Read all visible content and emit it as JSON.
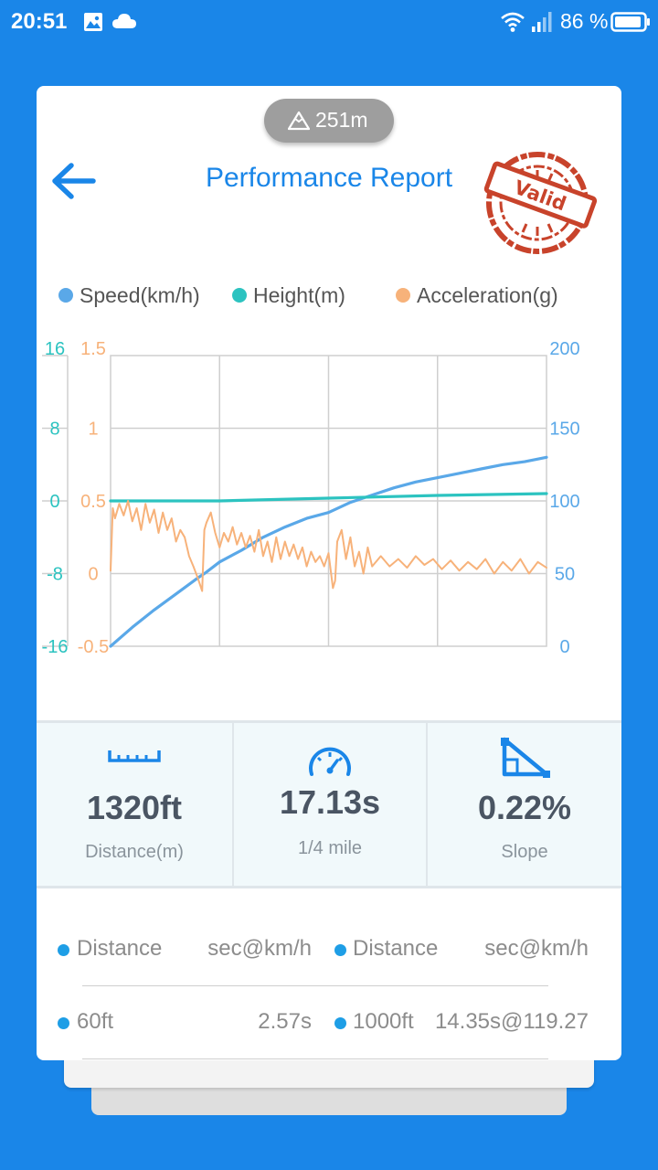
{
  "status_bar": {
    "time": "20:51",
    "battery": "86 %",
    "icons": [
      "gallery-icon",
      "cloud-icon",
      "wifi-icon",
      "signal-icon",
      "battery-icon"
    ]
  },
  "header": {
    "altitude_badge": "251m",
    "title": "Performance Report",
    "stamp_text": "Valid"
  },
  "legend": {
    "speed": "Speed(km/h)",
    "height": "Height(m)",
    "acceleration": "Acceleration(g)"
  },
  "colors": {
    "speed": "#5aa8e8",
    "height": "#2cc3c0",
    "acceleration": "#f7b27a",
    "accent": "#1a86e8",
    "stamp": "#c8432b"
  },
  "chart_data": {
    "type": "line",
    "axes": {
      "height": {
        "ticks": [
          "16",
          "8",
          "0",
          "-8",
          "-16"
        ],
        "ylim": [
          -16,
          16
        ]
      },
      "acceleration": {
        "ticks": [
          "1.5",
          "1",
          "0.5",
          "0",
          "-0.5"
        ],
        "ylim": [
          -0.5,
          1.5
        ]
      },
      "speed": {
        "ticks": [
          "200",
          "150",
          "100",
          "50",
          "0"
        ],
        "ylim": [
          0,
          200
        ]
      }
    },
    "x": [
      0,
      0.25,
      0.5,
      0.75,
      1.0
    ],
    "grid": true,
    "legend_position": "top",
    "series": [
      {
        "name": "Speed(km/h)",
        "axis": "speed",
        "points": [
          [
            0,
            0
          ],
          [
            0.05,
            13
          ],
          [
            0.1,
            25
          ],
          [
            0.15,
            36
          ],
          [
            0.2,
            47
          ],
          [
            0.22,
            51
          ],
          [
            0.25,
            58
          ],
          [
            0.3,
            66
          ],
          [
            0.35,
            75
          ],
          [
            0.4,
            82
          ],
          [
            0.45,
            88
          ],
          [
            0.5,
            92
          ],
          [
            0.55,
            99
          ],
          [
            0.6,
            104
          ],
          [
            0.65,
            109
          ],
          [
            0.7,
            113
          ],
          [
            0.75,
            116
          ],
          [
            0.8,
            119
          ],
          [
            0.85,
            122
          ],
          [
            0.9,
            125
          ],
          [
            0.95,
            127
          ],
          [
            1.0,
            130
          ]
        ]
      },
      {
        "name": "Height(m)",
        "axis": "height",
        "points": [
          [
            0,
            0
          ],
          [
            0.25,
            0
          ],
          [
            0.5,
            0.3
          ],
          [
            0.75,
            0.6
          ],
          [
            1.0,
            0.8
          ]
        ]
      },
      {
        "name": "Acceleration(g)",
        "axis": "acceleration",
        "points": [
          [
            0,
            0.02
          ],
          [
            0.005,
            0.45
          ],
          [
            0.01,
            0.38
          ],
          [
            0.02,
            0.48
          ],
          [
            0.03,
            0.4
          ],
          [
            0.04,
            0.5
          ],
          [
            0.05,
            0.36
          ],
          [
            0.06,
            0.45
          ],
          [
            0.07,
            0.3
          ],
          [
            0.08,
            0.48
          ],
          [
            0.09,
            0.35
          ],
          [
            0.1,
            0.44
          ],
          [
            0.11,
            0.28
          ],
          [
            0.12,
            0.42
          ],
          [
            0.13,
            0.3
          ],
          [
            0.14,
            0.38
          ],
          [
            0.15,
            0.22
          ],
          [
            0.16,
            0.3
          ],
          [
            0.17,
            0.25
          ],
          [
            0.18,
            0.12
          ],
          [
            0.19,
            0.05
          ],
          [
            0.2,
            -0.03
          ],
          [
            0.21,
            -0.12
          ],
          [
            0.215,
            0.3
          ],
          [
            0.22,
            0.35
          ],
          [
            0.23,
            0.42
          ],
          [
            0.24,
            0.28
          ],
          [
            0.25,
            0.18
          ],
          [
            0.26,
            0.28
          ],
          [
            0.27,
            0.22
          ],
          [
            0.28,
            0.32
          ],
          [
            0.29,
            0.2
          ],
          [
            0.3,
            0.28
          ],
          [
            0.31,
            0.18
          ],
          [
            0.32,
            0.26
          ],
          [
            0.33,
            0.15
          ],
          [
            0.34,
            0.3
          ],
          [
            0.35,
            0.12
          ],
          [
            0.36,
            0.22
          ],
          [
            0.37,
            0.08
          ],
          [
            0.38,
            0.25
          ],
          [
            0.39,
            0.1
          ],
          [
            0.4,
            0.22
          ],
          [
            0.41,
            0.12
          ],
          [
            0.42,
            0.2
          ],
          [
            0.43,
            0.1
          ],
          [
            0.44,
            0.18
          ],
          [
            0.45,
            0.05
          ],
          [
            0.46,
            0.15
          ],
          [
            0.47,
            0.08
          ],
          [
            0.48,
            0.12
          ],
          [
            0.49,
            0.05
          ],
          [
            0.5,
            0.14
          ],
          [
            0.51,
            -0.1
          ],
          [
            0.515,
            -0.05
          ],
          [
            0.52,
            0.22
          ],
          [
            0.53,
            0.3
          ],
          [
            0.54,
            0.1
          ],
          [
            0.55,
            0.25
          ],
          [
            0.56,
            0.05
          ],
          [
            0.57,
            0.15
          ],
          [
            0.58,
            0.0
          ],
          [
            0.59,
            0.18
          ],
          [
            0.6,
            0.05
          ],
          [
            0.62,
            0.12
          ],
          [
            0.64,
            0.05
          ],
          [
            0.66,
            0.1
          ],
          [
            0.68,
            0.04
          ],
          [
            0.7,
            0.12
          ],
          [
            0.72,
            0.06
          ],
          [
            0.74,
            0.1
          ],
          [
            0.76,
            0.03
          ],
          [
            0.78,
            0.09
          ],
          [
            0.8,
            0.02
          ],
          [
            0.82,
            0.08
          ],
          [
            0.84,
            0.03
          ],
          [
            0.86,
            0.1
          ],
          [
            0.88,
            0.0
          ],
          [
            0.9,
            0.08
          ],
          [
            0.92,
            0.02
          ],
          [
            0.94,
            0.1
          ],
          [
            0.96,
            0.0
          ],
          [
            0.98,
            0.08
          ],
          [
            1.0,
            0.04
          ]
        ]
      }
    ]
  },
  "stats": [
    {
      "icon": "ruler-icon",
      "value": "1320ft",
      "label": "Distance(m)"
    },
    {
      "icon": "speedometer-icon",
      "value": "17.13s",
      "label": "1/4 mile"
    },
    {
      "icon": "slope-icon",
      "value": "0.22%",
      "label": "Slope"
    }
  ],
  "splits": {
    "headers": {
      "left_name": "Distance",
      "left_value": "sec@km/h",
      "right_name": "Distance",
      "right_value": "sec@km/h"
    },
    "rows": [
      {
        "left_name": "60ft",
        "left_value": "2.57s",
        "right_name": "1000ft",
        "right_value": "14.35s@119.27"
      }
    ]
  }
}
